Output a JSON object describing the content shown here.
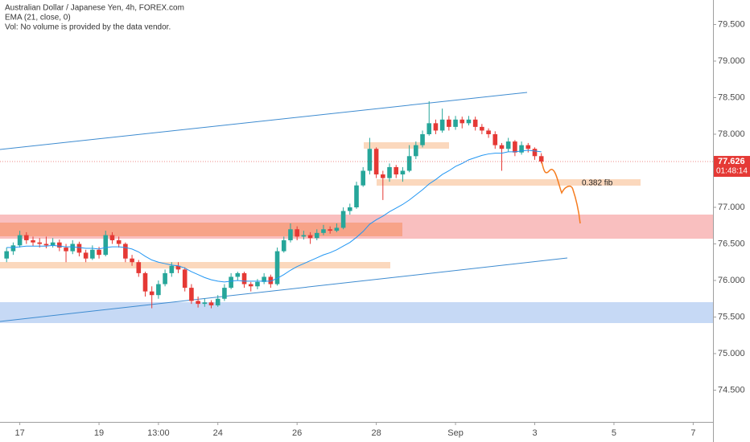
{
  "chart_data": {
    "type": "candlestick",
    "title": "Australian Dollar / Japanese Yen, 4h, FOREX.com",
    "subtitle": "Vol: No volume is provided by the data vendor.",
    "annotations": [
      "0.382 fib"
    ],
    "countdown": "01:48:14",
    "up_color": "#26a69a",
    "down_color": "#e53935",
    "x": [
      1,
      2,
      3,
      4,
      5,
      6,
      7,
      8,
      9,
      10,
      11,
      12,
      13,
      14,
      15,
      16,
      17,
      18,
      19,
      20,
      21,
      22,
      23,
      24,
      25,
      26,
      27,
      28,
      29,
      30,
      31,
      32,
      33,
      34,
      35,
      36,
      37,
      38,
      39,
      40,
      41,
      42,
      43,
      44,
      45,
      46,
      47,
      48,
      49,
      50,
      51,
      52,
      53,
      54,
      55,
      56,
      57,
      58,
      59,
      60,
      61,
      62,
      63,
      64,
      65,
      66,
      67,
      68,
      69,
      70,
      71,
      72,
      73,
      74,
      75,
      76,
      77,
      78,
      79,
      80,
      81,
      82
    ],
    "open": [
      76.3,
      76.4,
      76.48,
      76.62,
      76.55,
      76.52,
      76.5,
      76.48,
      76.52,
      76.45,
      76.4,
      76.5,
      76.38,
      76.3,
      76.42,
      76.35,
      76.62,
      76.55,
      76.5,
      76.3,
      76.25,
      76.1,
      75.85,
      75.8,
      75.95,
      76.1,
      76.2,
      76.15,
      75.9,
      75.72,
      75.68,
      75.7,
      75.66,
      75.75,
      75.9,
      76.05,
      76.1,
      75.95,
      75.92,
      75.98,
      76.05,
      75.95,
      76.4,
      76.55,
      76.7,
      76.6,
      76.62,
      76.58,
      76.65,
      76.7,
      76.68,
      76.72,
      76.95,
      77.0,
      77.3,
      77.5,
      77.8,
      77.45,
      77.4,
      77.55,
      77.45,
      77.5,
      77.7,
      77.85,
      78.0,
      78.15,
      78.05,
      78.2,
      78.1,
      78.2,
      78.15,
      78.2,
      78.1,
      78.05,
      78.0,
      77.85,
      77.8,
      77.9,
      77.75,
      77.85,
      77.8,
      77.7
    ],
    "high": [
      76.45,
      76.52,
      76.68,
      76.66,
      76.6,
      76.58,
      76.6,
      76.58,
      76.56,
      76.5,
      76.55,
      76.53,
      76.42,
      76.48,
      76.46,
      76.68,
      76.66,
      76.6,
      76.52,
      76.35,
      76.28,
      76.12,
      75.92,
      76.0,
      76.15,
      76.25,
      76.25,
      76.18,
      75.95,
      75.78,
      75.75,
      75.73,
      75.8,
      75.95,
      76.1,
      76.12,
      76.12,
      75.98,
      76.02,
      76.1,
      76.08,
      76.45,
      76.6,
      76.78,
      76.74,
      76.68,
      76.66,
      76.7,
      76.76,
      76.74,
      76.78,
      77.0,
      77.05,
      77.35,
      77.55,
      77.95,
      77.82,
      77.5,
      77.6,
      77.58,
      77.55,
      77.85,
      77.9,
      78.05,
      78.45,
      78.2,
      78.35,
      78.25,
      78.25,
      78.24,
      78.25,
      78.24,
      78.14,
      78.08,
      78.04,
      77.88,
      77.95,
      77.92,
      77.9,
      77.88,
      77.82,
      77.74
    ],
    "low": [
      76.25,
      76.35,
      76.45,
      76.5,
      76.47,
      76.45,
      76.44,
      76.45,
      76.4,
      76.25,
      76.36,
      76.33,
      76.25,
      76.28,
      76.3,
      76.33,
      76.5,
      76.45,
      76.25,
      76.2,
      76.05,
      75.78,
      75.62,
      75.75,
      75.92,
      76.05,
      76.1,
      75.85,
      75.68,
      75.63,
      75.64,
      75.62,
      75.64,
      75.72,
      75.88,
      76.0,
      75.9,
      75.85,
      75.88,
      75.95,
      75.9,
      75.93,
      76.38,
      76.52,
      76.55,
      76.56,
      76.5,
      76.55,
      76.62,
      76.64,
      76.66,
      76.7,
      76.9,
      76.98,
      77.28,
      77.45,
      77.4,
      77.1,
      77.35,
      77.4,
      77.35,
      77.48,
      77.66,
      77.82,
      77.98,
      78.0,
      78.02,
      78.05,
      78.06,
      78.08,
      78.12,
      78.05,
      78.0,
      77.95,
      77.8,
      77.5,
      77.76,
      77.7,
      77.72,
      77.75,
      77.65,
      77.6
    ],
    "close": [
      76.4,
      76.48,
      76.62,
      76.55,
      76.52,
      76.5,
      76.48,
      76.52,
      76.45,
      76.4,
      76.5,
      76.38,
      76.3,
      76.42,
      76.35,
      76.62,
      76.55,
      76.5,
      76.3,
      76.25,
      76.1,
      75.85,
      75.8,
      75.95,
      76.1,
      76.2,
      76.15,
      75.9,
      75.72,
      75.68,
      75.7,
      75.66,
      75.75,
      75.9,
      76.05,
      76.1,
      75.95,
      75.92,
      75.98,
      76.05,
      75.95,
      76.4,
      76.55,
      76.7,
      76.6,
      76.62,
      76.58,
      76.65,
      76.7,
      76.68,
      76.72,
      76.95,
      77.0,
      77.3,
      77.5,
      77.8,
      77.45,
      77.4,
      77.55,
      77.45,
      77.5,
      77.7,
      77.85,
      78.0,
      78.15,
      78.05,
      78.2,
      78.1,
      78.2,
      78.15,
      78.2,
      78.1,
      78.05,
      78.0,
      77.85,
      77.8,
      77.9,
      77.75,
      77.85,
      77.8,
      77.7,
      77.626
    ],
    "series": [
      {
        "name": "EMA (21, close, 0)",
        "color": "#2196f3",
        "values": [
          76.45,
          76.45,
          76.46,
          76.47,
          76.47,
          76.47,
          76.47,
          76.48,
          76.47,
          76.46,
          76.46,
          76.45,
          76.44,
          76.44,
          76.43,
          76.45,
          76.46,
          76.46,
          76.45,
          76.43,
          76.39,
          76.33,
          76.28,
          76.25,
          76.23,
          76.21,
          76.2,
          76.17,
          76.12,
          76.08,
          76.04,
          76.01,
          75.99,
          75.98,
          75.99,
          76.0,
          75.99,
          75.99,
          75.99,
          75.99,
          75.99,
          76.03,
          76.08,
          76.14,
          76.19,
          76.23,
          76.27,
          76.31,
          76.35,
          76.38,
          76.42,
          76.47,
          76.52,
          76.59,
          76.67,
          76.77,
          76.83,
          76.88,
          76.94,
          76.99,
          77.04,
          77.1,
          77.17,
          77.24,
          77.32,
          77.38,
          77.45,
          77.5,
          77.56,
          77.6,
          77.65,
          77.68,
          77.71,
          77.73,
          77.74,
          77.74,
          77.76,
          77.76,
          77.77,
          77.78,
          77.77,
          77.76
        ]
      }
    ],
    "xlim": [
      0,
      108
    ],
    "xticks": [
      {
        "value": 3,
        "label": "17"
      },
      {
        "value": 15,
        "label": "19"
      },
      {
        "value": 24,
        "label": "13:00"
      },
      {
        "value": 33,
        "label": "24"
      },
      {
        "value": 45,
        "label": "26"
      },
      {
        "value": 57,
        "label": "28"
      },
      {
        "value": 69,
        "label": "Sep"
      },
      {
        "value": 81,
        "label": "3"
      },
      {
        "value": 93,
        "label": "5"
      },
      {
        "value": 105,
        "label": "7"
      }
    ],
    "ylim": [
      74.066,
      79.835
    ],
    "yticks": [
      {
        "value": 74.5,
        "label": "74.500"
      },
      {
        "value": 75,
        "label": "75.000"
      },
      {
        "value": 75.5,
        "label": "75.500"
      },
      {
        "value": 76,
        "label": "76.000"
      },
      {
        "value": 76.5,
        "label": "76.500"
      },
      {
        "value": 77,
        "label": "77.000"
      },
      {
        "value": 78,
        "label": "78.000"
      },
      {
        "value": 78.5,
        "label": "78.500"
      },
      {
        "value": 79,
        "label": "79.000"
      },
      {
        "value": 79.5,
        "label": "79.500"
      }
    ]
  }
}
